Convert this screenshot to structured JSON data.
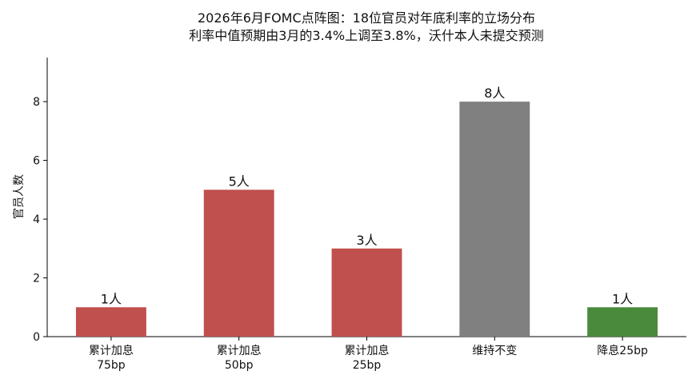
{
  "chart_data": {
    "type": "bar",
    "title": "2026年6月FOMC点阵图：18位官员对年底利率的立场分布",
    "subtitle": "利率中值预期由3月的3.4%上调至3.8%，沃什本人未提交预测",
    "y_label": "官员人数",
    "categories": [
      "累计加息\n75bp",
      "累计加息\n50bp",
      "累计加息\n25bp",
      "维持不变",
      "降息25bp"
    ],
    "values": [
      1,
      5,
      3,
      8,
      1
    ],
    "value_labels": [
      "1人",
      "5人",
      "3人",
      "8人",
      "1人"
    ],
    "colors": [
      "#c0504d",
      "#c0504d",
      "#c0504d",
      "#808080",
      "#4a8a3c"
    ],
    "ylim": [
      0,
      9.5
    ],
    "yticks": [
      0,
      2,
      4,
      6,
      8
    ],
    "grid": false
  }
}
